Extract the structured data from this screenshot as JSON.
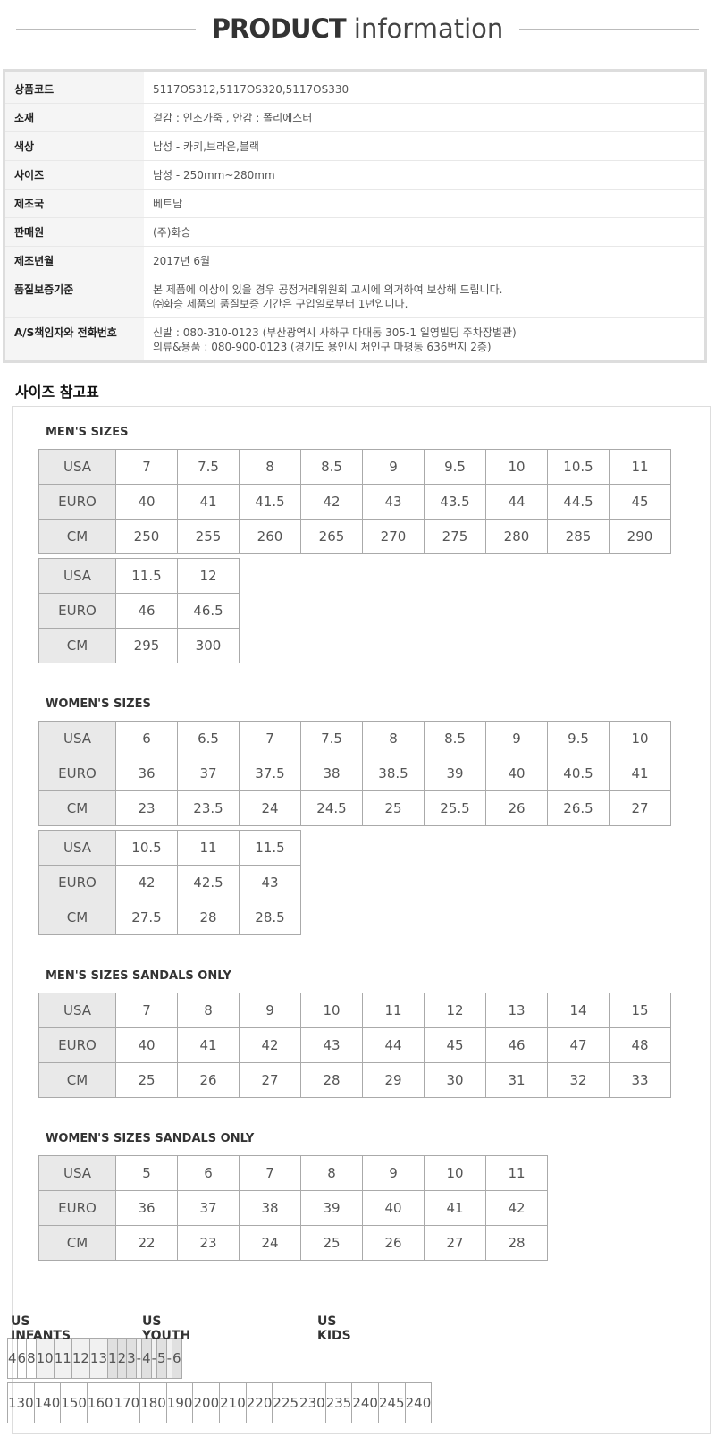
{
  "header": {
    "title_bold": "PRODUCT",
    "title_light": "information"
  },
  "product_info": {
    "rows": [
      [
        "상품코드",
        [
          "5117OS312,5117OS320,5117OS330"
        ]
      ],
      [
        "소재",
        [
          "겉감 : 인조가죽 , 안감 : 폴리에스터"
        ]
      ],
      [
        "색상",
        [
          "남성 - 카키,브라운,블랙"
        ]
      ],
      [
        "사이즈",
        [
          "남성 - 250mm~280mm"
        ]
      ],
      [
        "제조국",
        [
          "베트남"
        ]
      ],
      [
        "판매원",
        [
          "(주)화승"
        ]
      ],
      [
        "제조년월",
        [
          "2017년 6월"
        ]
      ],
      [
        "품질보증기준",
        [
          "본 제품에 이상이 있을 경우 공정거래위원회 고시에 의거하여 보상해 드립니다.",
          "㈜화승 제품의 품질보증 기간은 구입일로부터 1년입니다."
        ]
      ],
      [
        "A/S책임자와 전화번호",
        [
          "신발 : 080-310-0123 (부산광역시 사하구 다대동 305-1 일영빌딩 주차장별관)",
          "의류&용품 : 080-900-0123 (경기도 용인시 처인구 마평동 636번지 2층)"
        ]
      ]
    ]
  },
  "size_guide": {
    "title": "사이즈 참고표",
    "tables": [
      {
        "title": "MEN'S SIZES",
        "blocks": [
          [
            [
              "USA",
              "7",
              "7.5",
              "8",
              "8.5",
              "9",
              "9.5",
              "10",
              "10.5",
              "11"
            ],
            [
              "EURO",
              "40",
              "41",
              "41.5",
              "42",
              "43",
              "43.5",
              "44",
              "44.5",
              "45"
            ],
            [
              "CM",
              "250",
              "255",
              "260",
              "265",
              "270",
              "275",
              "280",
              "285",
              "290"
            ]
          ],
          [
            [
              "USA",
              "11.5",
              "12"
            ],
            [
              "EURO",
              "46",
              "46.5"
            ],
            [
              "CM",
              "295",
              "300"
            ]
          ]
        ]
      },
      {
        "title": "WOMEN'S SIZES",
        "blocks": [
          [
            [
              "USA",
              "6",
              "6.5",
              "7",
              "7.5",
              "8",
              "8.5",
              "9",
              "9.5",
              "10"
            ],
            [
              "EURO",
              "36",
              "37",
              "37.5",
              "38",
              "38.5",
              "39",
              "40",
              "40.5",
              "41"
            ],
            [
              "CM",
              "23",
              "23.5",
              "24",
              "24.5",
              "25",
              "25.5",
              "26",
              "26.5",
              "27"
            ]
          ],
          [
            [
              "USA",
              "10.5",
              "11",
              "11.5"
            ],
            [
              "EURO",
              "42",
              "42.5",
              "43"
            ],
            [
              "CM",
              "27.5",
              "28",
              "28.5"
            ]
          ]
        ]
      },
      {
        "title": "MEN'S SIZES SANDALS ONLY",
        "blocks": [
          [
            [
              "USA",
              "7",
              "8",
              "9",
              "10",
              "11",
              "12",
              "13",
              "14",
              "15"
            ],
            [
              "EURO",
              "40",
              "41",
              "42",
              "43",
              "44",
              "45",
              "46",
              "47",
              "48"
            ],
            [
              "CM",
              "25",
              "26",
              "27",
              "28",
              "29",
              "30",
              "31",
              "32",
              "33"
            ]
          ]
        ]
      },
      {
        "title": "WOMEN'S SIZES SANDALS ONLY",
        "blocks": [
          [
            [
              "USA",
              "5",
              "6",
              "7",
              "8",
              "9",
              "10",
              "11"
            ],
            [
              "EURO",
              "36",
              "37",
              "38",
              "39",
              "40",
              "41",
              "42"
            ],
            [
              "CM",
              "22",
              "23",
              "24",
              "25",
              "26",
              "27",
              "28"
            ]
          ]
        ]
      }
    ],
    "kids": {
      "groups": [
        {
          "label": "US INFANTS",
          "us": [
            "4",
            "6",
            "8"
          ],
          "cm": [
            "130",
            "140",
            "150"
          ]
        },
        {
          "label": "US YOUTH",
          "us": [
            "10",
            "11",
            "12",
            "13"
          ],
          "cm": [
            "160",
            "170",
            "180",
            "190"
          ]
        },
        {
          "label": "US KIDS",
          "us": [
            "1",
            "2",
            "3",
            "-",
            "4",
            "-",
            "5",
            "-",
            "6"
          ],
          "cm": [
            "200",
            "210",
            "220",
            "225",
            "230",
            "235",
            "240",
            "245",
            "240"
          ]
        }
      ]
    }
  }
}
